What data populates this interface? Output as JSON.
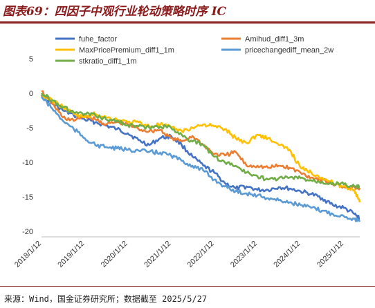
{
  "header": {
    "title": "图表69：四因子中观行业轮动策略时序 IC"
  },
  "footer": {
    "source": "来源：Wind，国金证券研究所；数据截至 2025/5/27"
  },
  "chart_data": {
    "type": "line",
    "title": "",
    "xlabel": "",
    "ylabel": "",
    "ylim": [
      -20,
      5
    ],
    "yticks": [
      5,
      0,
      -5,
      -10,
      -15,
      -20
    ],
    "xticks": [
      "2018/1/12",
      "2019/1/12",
      "2020/1/12",
      "2021/1/12",
      "2022/1/12",
      "2023/1/12",
      "2024/1/12",
      "2025/1/12"
    ],
    "xrange": [
      "2018/1/12",
      "2025/5/27"
    ],
    "grid": false,
    "legend_placement": "top",
    "series": [
      {
        "name": "fuhe_factor",
        "color": "#4472C4",
        "x": [
          "2018/1/12",
          "2018/4/12",
          "2018/7/12",
          "2018/10/12",
          "2019/1/12",
          "2019/4/12",
          "2019/7/12",
          "2019/10/12",
          "2020/1/12",
          "2020/4/12",
          "2020/7/12",
          "2020/10/12",
          "2021/1/12",
          "2021/4/12",
          "2021/7/12",
          "2021/10/12",
          "2022/1/12",
          "2022/4/12",
          "2022/7/12",
          "2022/10/12",
          "2023/1/12",
          "2023/4/12",
          "2023/7/12",
          "2023/10/12",
          "2024/1/12",
          "2024/4/12",
          "2024/7/12",
          "2024/10/12",
          "2025/1/12",
          "2025/4/12",
          "2025/5/27"
        ],
        "y": [
          -0.3,
          -1.5,
          -2.5,
          -3.2,
          -3.8,
          -4.2,
          -4.7,
          -5.2,
          -5.8,
          -6.8,
          -7.5,
          -6.5,
          -6.2,
          -7.5,
          -9.2,
          -10.5,
          -11.5,
          -13.0,
          -13.8,
          -13.5,
          -14.0,
          -14.0,
          -13.6,
          -13.8,
          -14.2,
          -14.6,
          -15.2,
          -16.2,
          -16.6,
          -17.5,
          -18.2
        ]
      },
      {
        "name": "Amihud_diff1_3m",
        "color": "#ED7D31",
        "x": [
          "2018/1/12",
          "2018/4/12",
          "2018/7/12",
          "2018/10/12",
          "2019/1/12",
          "2019/4/12",
          "2019/7/12",
          "2019/10/12",
          "2020/1/12",
          "2020/4/12",
          "2020/7/12",
          "2020/10/12",
          "2021/1/12",
          "2021/4/12",
          "2021/7/12",
          "2021/10/12",
          "2022/1/12",
          "2022/4/12",
          "2022/7/12",
          "2022/10/12",
          "2023/1/12",
          "2023/4/12",
          "2023/7/12",
          "2023/10/12",
          "2024/1/12",
          "2024/4/12",
          "2024/7/12",
          "2024/10/12",
          "2025/1/12",
          "2025/4/12",
          "2025/5/27"
        ],
        "y": [
          0.3,
          -1.5,
          -3.5,
          -4.0,
          -3.2,
          -3.8,
          -4.5,
          -4.2,
          -4.5,
          -5.2,
          -5.5,
          -5.3,
          -6.5,
          -7.0,
          -6.2,
          -7.5,
          -8.8,
          -9.0,
          -8.5,
          -10.5,
          -10.5,
          -10.8,
          -10.5,
          -10.8,
          -11.5,
          -12.2,
          -12.5,
          -13.2,
          -13.5,
          -13.6,
          -13.7
        ]
      },
      {
        "name": "MaxPricePremium_diff1_1m",
        "color": "#FFC000",
        "x": [
          "2018/1/12",
          "2018/4/12",
          "2018/7/12",
          "2018/10/12",
          "2019/1/12",
          "2019/4/12",
          "2019/7/12",
          "2019/10/12",
          "2020/1/12",
          "2020/4/12",
          "2020/7/12",
          "2020/10/12",
          "2021/1/12",
          "2021/4/12",
          "2021/7/12",
          "2021/10/12",
          "2022/1/12",
          "2022/4/12",
          "2022/7/12",
          "2022/10/12",
          "2023/1/12",
          "2023/4/12",
          "2023/7/12",
          "2023/10/12",
          "2024/1/12",
          "2024/4/12",
          "2024/7/12",
          "2024/10/12",
          "2025/1/12",
          "2025/4/12",
          "2025/5/27"
        ],
        "y": [
          -0.5,
          -1.0,
          -2.0,
          -3.0,
          -3.5,
          -3.0,
          -3.5,
          -3.8,
          -4.2,
          -4.2,
          -4.8,
          -4.5,
          -5.0,
          -5.5,
          -5.0,
          -4.5,
          -4.8,
          -5.2,
          -6.5,
          -7.2,
          -6.0,
          -6.5,
          -7.5,
          -8.2,
          -10.8,
          -11.5,
          -12.2,
          -13.0,
          -13.5,
          -14.0,
          -15.8
        ]
      },
      {
        "name": "pricechangediff_mean_2w",
        "color": "#5B9BD5",
        "x": [
          "2018/1/12",
          "2018/4/12",
          "2018/7/12",
          "2018/10/12",
          "2019/1/12",
          "2019/4/12",
          "2019/7/12",
          "2019/10/12",
          "2020/1/12",
          "2020/4/12",
          "2020/7/12",
          "2020/10/12",
          "2021/1/12",
          "2021/4/12",
          "2021/7/12",
          "2021/10/12",
          "2022/1/12",
          "2022/4/12",
          "2022/7/12",
          "2022/10/12",
          "2023/1/12",
          "2023/4/12",
          "2023/7/12",
          "2023/10/12",
          "2024/1/12",
          "2024/4/12",
          "2024/7/12",
          "2024/10/12",
          "2025/1/12",
          "2025/4/12",
          "2025/5/27"
        ],
        "y": [
          -0.5,
          -2.2,
          -4.0,
          -5.2,
          -6.5,
          -7.5,
          -7.8,
          -8.0,
          -8.2,
          -8.3,
          -8.5,
          -8.6,
          -9.0,
          -9.8,
          -10.5,
          -11.2,
          -12.5,
          -13.5,
          -14.2,
          -14.5,
          -14.8,
          -15.2,
          -15.5,
          -15.8,
          -16.2,
          -16.6,
          -17.0,
          -17.5,
          -17.8,
          -18.2,
          -18.6
        ]
      },
      {
        "name": "stkratio_diff1_1m",
        "color": "#70AD47",
        "x": [
          "2018/1/12",
          "2018/4/12",
          "2018/7/12",
          "2018/10/12",
          "2019/1/12",
          "2019/4/12",
          "2019/7/12",
          "2019/10/12",
          "2020/1/12",
          "2020/4/12",
          "2020/7/12",
          "2020/10/12",
          "2021/1/12",
          "2021/4/12",
          "2021/7/12",
          "2021/10/12",
          "2022/1/12",
          "2022/4/12",
          "2022/7/12",
          "2022/10/12",
          "2023/1/12",
          "2023/4/12",
          "2023/7/12",
          "2023/10/12",
          "2024/1/12",
          "2024/4/12",
          "2024/7/12",
          "2024/10/12",
          "2025/1/12",
          "2025/4/12",
          "2025/5/27"
        ],
        "y": [
          0.0,
          -1.0,
          -2.0,
          -2.8,
          -3.0,
          -3.2,
          -3.8,
          -4.0,
          -4.6,
          -4.8,
          -5.0,
          -4.8,
          -5.0,
          -6.0,
          -7.0,
          -7.5,
          -9.2,
          -10.0,
          -10.5,
          -11.5,
          -12.0,
          -12.5,
          -12.3,
          -12.2,
          -12.3,
          -12.6,
          -12.8,
          -13.0,
          -13.2,
          -13.5,
          -13.6
        ]
      }
    ]
  }
}
